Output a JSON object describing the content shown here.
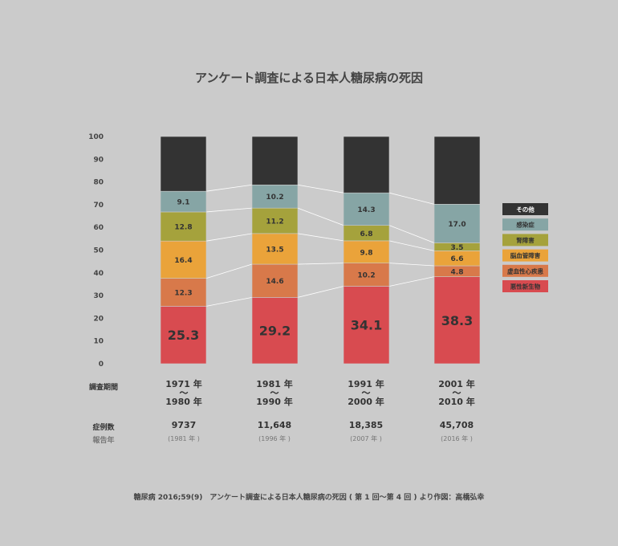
{
  "title": "アンケート調査による日本人糖尿病の死因",
  "chart_data": {
    "type": "bar",
    "stacked": true,
    "ylim": [
      0,
      100
    ],
    "yticks": [
      0,
      10,
      20,
      30,
      40,
      50,
      60,
      70,
      80,
      90,
      100
    ],
    "grid": false,
    "legend_position": "right",
    "categories": [
      "1971 年 〜 1980 年",
      "1981 年 〜 1990 年",
      "1991 年 〜 2000 年",
      "2001 年 〜 2010 年"
    ],
    "series": [
      {
        "name": "悪性新生物",
        "color": "#d84b50",
        "values": [
          25.3,
          29.2,
          34.1,
          38.3
        ],
        "labels": [
          "25.3",
          "29.2",
          "34.1",
          "38.3"
        ]
      },
      {
        "name": "虚血性心疾患",
        "color": "#d8794a",
        "values": [
          12.3,
          14.6,
          10.2,
          4.8
        ],
        "labels": [
          "12.3",
          "14.6",
          "10.2",
          "4.8"
        ]
      },
      {
        "name": "脳血管障害",
        "color": "#eaa33a",
        "values": [
          16.4,
          13.5,
          9.8,
          6.6
        ],
        "labels": [
          "16.4",
          "13.5",
          "9.8",
          "6.6"
        ]
      },
      {
        "name": "腎障害",
        "color": "#a5a23c",
        "values": [
          12.8,
          11.2,
          6.8,
          3.5
        ],
        "labels": [
          "12.8",
          "11.2",
          "6.8",
          "3.5"
        ]
      },
      {
        "name": "感染症",
        "color": "#86a5a5",
        "values": [
          9.1,
          10.2,
          14.3,
          17.0
        ],
        "labels": [
          "9.1",
          "10.2",
          "14.3",
          "17.0"
        ]
      },
      {
        "name": "その他",
        "color": "#333333",
        "values": [
          24.1,
          21.3,
          24.8,
          29.8
        ],
        "labels": [
          "",
          "",
          "",
          ""
        ]
      }
    ]
  },
  "table": {
    "period_label": "調査期間",
    "count_label": "症例数",
    "report_label": "報告年",
    "periods": [
      {
        "start": "1971 年",
        "sep": "〜",
        "end": "1980 年",
        "count": "9737",
        "report": "(1981 年 )"
      },
      {
        "start": "1981 年",
        "sep": "〜",
        "end": "1990 年",
        "count": "11,648",
        "report": "(1996 年 )"
      },
      {
        "start": "1991 年",
        "sep": "〜",
        "end": "2000 年",
        "count": "18,385",
        "report": "(2007 年 )"
      },
      {
        "start": "2001 年",
        "sep": "〜",
        "end": "2010 年",
        "count": "45,708",
        "report": "(2016 年 )"
      }
    ]
  },
  "source": "糖尿病 2016;59(9)　アンケート調査による日本人糖尿病の死因 ( 第 1 回〜第 4 回 ) より作図：高橋弘幸"
}
